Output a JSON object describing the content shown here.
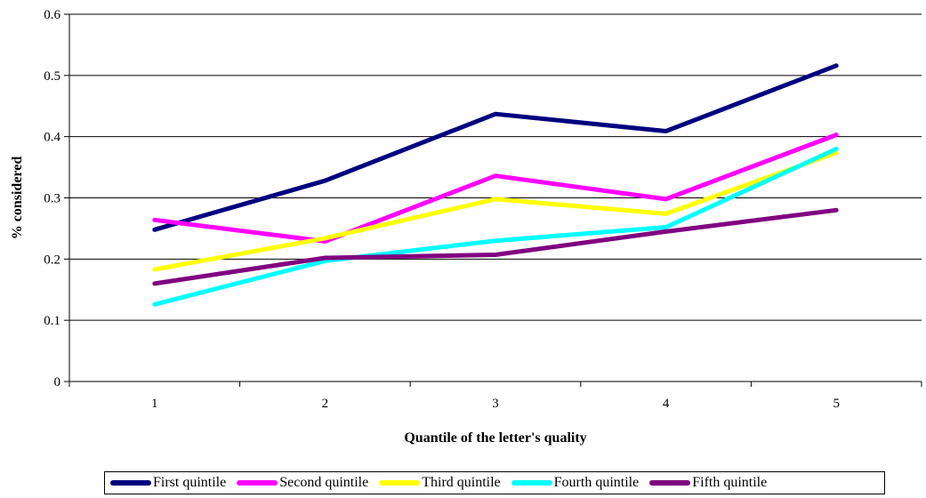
{
  "chart_data": {
    "type": "line",
    "title": "",
    "xlabel": "Quantile of the letter's quality",
    "ylabel": "% considered",
    "categories": [
      "1",
      "2",
      "3",
      "4",
      "5"
    ],
    "ylim": [
      0,
      0.6
    ],
    "yticks": [
      "0",
      "0.1",
      "0.2",
      "0.3",
      "0.4",
      "0.5",
      "0.6"
    ],
    "grid": "horizontal",
    "legend_position": "bottom",
    "series": [
      {
        "name": "First quintile",
        "color": "#00007f",
        "values": [
          0.248,
          0.328,
          0.437,
          0.409,
          0.516
        ]
      },
      {
        "name": "Second quintile",
        "color": "#ff00ff",
        "values": [
          0.264,
          0.229,
          0.336,
          0.298,
          0.403
        ]
      },
      {
        "name": "Third quintile",
        "color": "#ffff00",
        "values": [
          0.183,
          0.234,
          0.298,
          0.274,
          0.374
        ]
      },
      {
        "name": "Fourth quintile",
        "color": "#00ffff",
        "values": [
          0.126,
          0.197,
          0.23,
          0.252,
          0.38
        ]
      },
      {
        "name": "Fifth quintile",
        "color": "#800080",
        "values": [
          0.16,
          0.202,
          0.207,
          0.245,
          0.28
        ]
      }
    ]
  }
}
